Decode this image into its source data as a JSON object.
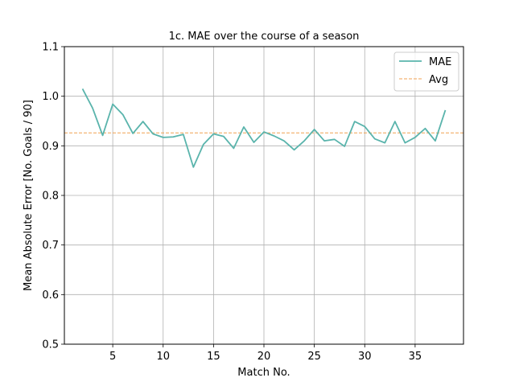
{
  "chart_data": {
    "type": "line",
    "title": "1c. MAE over the course of a season",
    "xlabel": "Match No.",
    "ylabel": "Mean Absolute Error [No. Goals / 90]",
    "xlim": [
      0.2,
      39.8
    ],
    "ylim": [
      0.5,
      1.1
    ],
    "xticks": [
      5,
      10,
      15,
      20,
      25,
      30,
      35
    ],
    "xtick_labels": [
      "5",
      "10",
      "15",
      "20",
      "25",
      "30",
      "35"
    ],
    "yticks": [
      0.5,
      0.6,
      0.7,
      0.8,
      0.9,
      1.0,
      1.1
    ],
    "ytick_labels": [
      "0.5",
      "0.6",
      "0.7",
      "0.8",
      "0.9",
      "1.0",
      "1.1"
    ],
    "grid": true,
    "legend_position": "top-right",
    "series": [
      {
        "name": "MAE",
        "color": "#5ab4ac",
        "style": "solid",
        "x": [
          2,
          3,
          4,
          5,
          6,
          7,
          8,
          9,
          10,
          11,
          12,
          13,
          14,
          15,
          16,
          17,
          18,
          19,
          20,
          21,
          22,
          23,
          24,
          25,
          26,
          27,
          28,
          29,
          30,
          31,
          32,
          33,
          34,
          35,
          36,
          37,
          38
        ],
        "y": [
          1.015,
          0.976,
          0.921,
          0.984,
          0.963,
          0.925,
          0.949,
          0.924,
          0.917,
          0.918,
          0.923,
          0.857,
          0.903,
          0.924,
          0.919,
          0.895,
          0.938,
          0.907,
          0.928,
          0.92,
          0.91,
          0.892,
          0.91,
          0.933,
          0.91,
          0.913,
          0.899,
          0.949,
          0.939,
          0.914,
          0.906,
          0.949,
          0.906,
          0.917,
          0.935,
          0.91,
          0.972
        ]
      },
      {
        "name": "Avg",
        "color": "#f0a050",
        "style": "dashed",
        "x": [
          0.2,
          39.8
        ],
        "y": [
          0.926,
          0.926
        ]
      }
    ]
  }
}
